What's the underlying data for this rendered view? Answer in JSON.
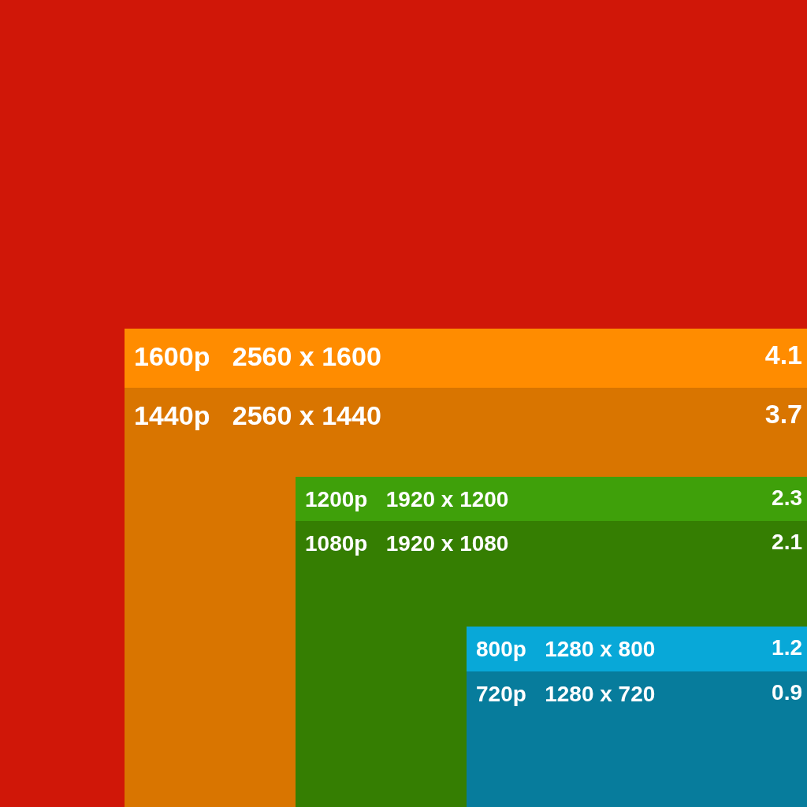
{
  "chart_data": {
    "type": "other",
    "categories": [
      "1600p   2560 x 1600",
      "1440p   2560 x 1440",
      "1200p   1920 x 1200",
      "1080p   1920 x 1080",
      "800p   1280 x 800",
      "720p   1280 x 720"
    ],
    "values": [
      4.1,
      3.7,
      2.3,
      2.1,
      1.2,
      0.9
    ],
    "colors": [
      "#ff8c00",
      "#d97500",
      "#3fa00a",
      "#357e02",
      "#08a8d8",
      "#077c9c"
    ],
    "data_labels": true
  }
}
